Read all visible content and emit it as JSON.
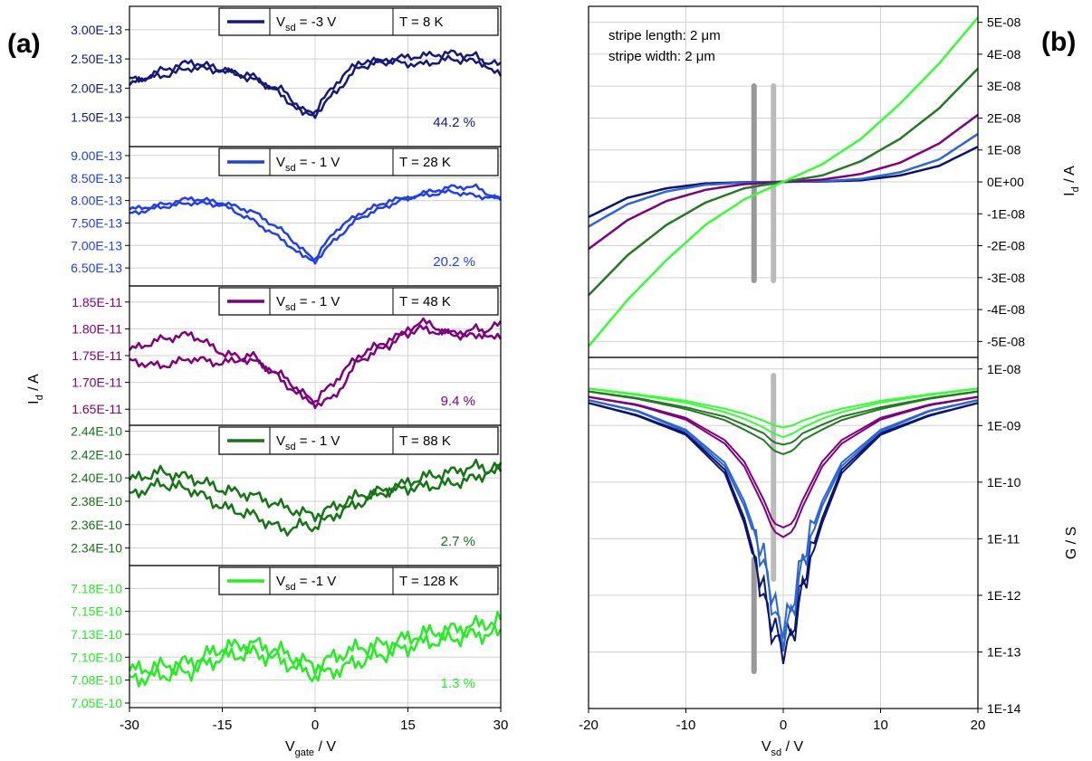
{
  "panel_labels": {
    "a": "(a)",
    "b": "(b)"
  },
  "left_axis": {
    "ylabel_main": "I",
    "ylabel_sub": "d",
    "ylabel_unit": " / A",
    "xlabel_main": "V",
    "xlabel_sub": "gate",
    "xlabel_unit": " / V",
    "xticks": [
      "-30",
      "-15",
      "0",
      "15",
      "30"
    ]
  },
  "right_axis": {
    "xlabel_main": "V",
    "xlabel_sub": "sd",
    "xlabel_unit": " / V",
    "xticks": [
      "-20",
      "-10",
      "0",
      "10",
      "20"
    ],
    "top_ylabel_main": "I",
    "top_ylabel_sub": "d",
    "top_ylabel_unit": " / A",
    "bottom_ylabel": "G / S",
    "annotation_line1": "stripe length: 2 μm",
    "annotation_line2": "stripe width: 2 μm"
  },
  "colors": {
    "k8": "#151a7a",
    "k28": "#1f3ef0",
    "k48": "#800080",
    "k88": "#137513",
    "k128": "#22ee22",
    "b_navy": "#0b1470",
    "b_blue": "#2a66d6",
    "b_purple": "#800080",
    "b_green": "#227a22",
    "b_lime": "#33ff33",
    "grey_bar": "#999999",
    "lightgrey_bar": "#bbbbbb"
  },
  "chart_data": [
    {
      "type": "line",
      "panel": "a-1",
      "legend_prefix": "V",
      "legend_sub": "sd",
      "legend_value": " = -3 V",
      "legend_temp": "T = 8 K",
      "annotation": "44.2 %",
      "yticks": [
        "3.00E-13",
        "2.50E-13",
        "2.00E-13",
        "1.50E-13"
      ],
      "ytick_values": [
        3e-13,
        2.5e-13,
        2e-13,
        1.5e-13
      ],
      "ylim": [
        1e-13,
        3.4e-13
      ],
      "xlim": [
        -30,
        30
      ],
      "x": [
        -30,
        -25,
        -20,
        -15,
        -10,
        -5,
        -2,
        0,
        3,
        7,
        12,
        17,
        22,
        26,
        30
      ],
      "series": [
        {
          "values": [
            2.05e-13,
            2.3e-13,
            2.45e-13,
            2.32e-13,
            2.15e-13,
            1.95e-13,
            1.62e-13,
            1.55e-13,
            1.9e-13,
            2.35e-13,
            2.5e-13,
            2.55e-13,
            2.6e-13,
            2.55e-13,
            2.2e-13
          ]
        },
        {
          "values": [
            2.15e-13,
            2.2e-13,
            2.35e-13,
            2.3e-13,
            2.2e-13,
            1.85e-13,
            1.55e-13,
            1.6e-13,
            2.05e-13,
            2.45e-13,
            2.45e-13,
            2.4e-13,
            2.5e-13,
            2.45e-13,
            2.4e-13
          ]
        }
      ]
    },
    {
      "type": "line",
      "panel": "a-2",
      "legend_prefix": "V",
      "legend_sub": "sd",
      "legend_value": " = - 1 V",
      "legend_temp": "T = 28 K",
      "annotation": "20.2 %",
      "yticks": [
        "9.00E-13",
        "8.50E-13",
        "8.00E-13",
        "7.50E-13",
        "7.00E-13",
        "6.50E-13"
      ],
      "ytick_values": [
        9e-13,
        8.5e-13,
        8e-13,
        7.5e-13,
        7e-13,
        6.5e-13
      ],
      "ylim": [
        6.1e-13,
        9.2e-13
      ],
      "xlim": [
        -30,
        30
      ],
      "x": [
        -30,
        -25,
        -20,
        -15,
        -10,
        -5,
        -2,
        0,
        3,
        7,
        12,
        17,
        22,
        26,
        30
      ],
      "series": [
        {
          "values": [
            7.8e-13,
            7.9e-13,
            8.05e-13,
            7.95e-13,
            7.75e-13,
            7.3e-13,
            6.9e-13,
            6.65e-13,
            7.1e-13,
            7.6e-13,
            7.9e-13,
            8.15e-13,
            8.3e-13,
            8.3e-13,
            8e-13
          ]
        },
        {
          "values": [
            7.7e-13,
            7.85e-13,
            7.95e-13,
            7.9e-13,
            7.55e-13,
            7.1e-13,
            6.75e-13,
            6.7e-13,
            7.3e-13,
            7.7e-13,
            8e-13,
            8.1e-13,
            8.2e-13,
            8.1e-13,
            8.05e-13
          ]
        }
      ]
    },
    {
      "type": "line",
      "panel": "a-3",
      "legend_prefix": "V",
      "legend_sub": "sd",
      "legend_value": " = - 1 V",
      "legend_temp": "T = 48 K",
      "annotation": "9.4 %",
      "yticks": [
        "1.85E-11",
        "1.80E-11",
        "1.75E-11",
        "1.70E-11",
        "1.65E-11"
      ],
      "ytick_values": [
        1.85e-11,
        1.8e-11,
        1.75e-11,
        1.7e-11,
        1.65e-11
      ],
      "ylim": [
        1.62e-11,
        1.88e-11
      ],
      "xlim": [
        -30,
        30
      ],
      "x": [
        -30,
        -25,
        -20,
        -15,
        -10,
        -5,
        -2,
        0,
        3,
        7,
        12,
        17,
        22,
        26,
        30
      ],
      "series": [
        {
          "values": [
            1.76e-11,
            1.78e-11,
            1.79e-11,
            1.755e-11,
            1.74e-11,
            1.71e-11,
            1.68e-11,
            1.66e-11,
            1.67e-11,
            1.74e-11,
            1.77e-11,
            1.815e-11,
            1.79e-11,
            1.8e-11,
            1.78e-11
          ]
        },
        {
          "values": [
            1.74e-11,
            1.73e-11,
            1.745e-11,
            1.735e-11,
            1.75e-11,
            1.7e-11,
            1.67e-11,
            1.665e-11,
            1.7e-11,
            1.75e-11,
            1.78e-11,
            1.8e-11,
            1.79e-11,
            1.785e-11,
            1.81e-11
          ]
        }
      ]
    },
    {
      "type": "line",
      "panel": "a-4",
      "legend_prefix": "V",
      "legend_sub": "sd",
      "legend_value": " = - 1 V",
      "legend_temp": "T = 88 K",
      "annotation": "2.7 %",
      "yticks": [
        "2.44E-10",
        "2.42E-10",
        "2.40E-10",
        "2.38E-10",
        "2.36E-10",
        "2.34E-10"
      ],
      "ytick_values": [
        2.44e-10,
        2.42e-10,
        2.4e-10,
        2.38e-10,
        2.36e-10,
        2.34e-10
      ],
      "ylim": [
        2.325e-10,
        2.445e-10
      ],
      "xlim": [
        -30,
        30
      ],
      "x": [
        -30,
        -25,
        -20,
        -15,
        -10,
        -5,
        -2,
        0,
        3,
        7,
        12,
        17,
        22,
        26,
        30
      ],
      "series": [
        {
          "values": [
            2.398e-10,
            2.405e-10,
            2.4e-10,
            2.39e-10,
            2.385e-10,
            2.375e-10,
            2.37e-10,
            2.368e-10,
            2.375e-10,
            2.385e-10,
            2.39e-10,
            2.4e-10,
            2.405e-10,
            2.41e-10,
            2.405e-10
          ]
        },
        {
          "values": [
            2.385e-10,
            2.395e-10,
            2.39e-10,
            2.375e-10,
            2.368e-10,
            2.355e-10,
            2.36e-10,
            2.358e-10,
            2.368e-10,
            2.378e-10,
            2.39e-10,
            2.392e-10,
            2.395e-10,
            2.4e-10,
            2.41e-10
          ]
        }
      ]
    },
    {
      "type": "line",
      "panel": "a-5",
      "legend_prefix": "V",
      "legend_sub": "sd",
      "legend_value": " = -1 V",
      "legend_temp": "T = 128 K",
      "annotation": "1.3 %",
      "yticks": [
        "7.18E-10",
        "7.15E-10",
        "7.13E-10",
        "7.10E-10",
        "7.08E-10",
        "7.05E-10"
      ],
      "ytick_values": [
        7.18e-10,
        7.155e-10,
        7.13e-10,
        7.105e-10,
        7.08e-10,
        7.055e-10
      ],
      "ylim": [
        7.05e-10,
        7.205e-10
      ],
      "xlim": [
        -30,
        30
      ],
      "x": [
        -30,
        -25,
        -20,
        -15,
        -10,
        -5,
        -2,
        0,
        3,
        7,
        12,
        17,
        22,
        26,
        30
      ],
      "series": [
        {
          "values": [
            7.09e-10,
            7.095e-10,
            7.1e-10,
            7.115e-10,
            7.12e-10,
            7.11e-10,
            7.1e-10,
            7.095e-10,
            7.105e-10,
            7.115e-10,
            7.12e-10,
            7.13e-10,
            7.135e-10,
            7.14e-10,
            7.145e-10
          ]
        },
        {
          "values": [
            7.08e-10,
            7.085e-10,
            7.09e-10,
            7.105e-10,
            7.11e-10,
            7.1e-10,
            7.09e-10,
            7.085e-10,
            7.09e-10,
            7.1e-10,
            7.11e-10,
            7.12e-10,
            7.125e-10,
            7.13e-10,
            7.13e-10
          ]
        }
      ]
    },
    {
      "type": "line",
      "panel": "b-top",
      "xlim": [
        -20,
        20
      ],
      "ylim": [
        -5.5e-08,
        5.5e-08
      ],
      "yticks": [
        "5E-08",
        "4E-08",
        "3E-08",
        "2E-08",
        "1E-08",
        "0E+00",
        "-1E-08",
        "-2E-08",
        "-3E-08",
        "-4E-08",
        "-5E-08"
      ],
      "ytick_values": [
        5e-08,
        4e-08,
        3e-08,
        2e-08,
        1e-08,
        0,
        -1e-08,
        -2e-08,
        -3e-08,
        -4e-08,
        -5e-08
      ],
      "x": [
        -20,
        -16,
        -12,
        -8,
        -4,
        0,
        4,
        8,
        12,
        16,
        20
      ],
      "series": [
        {
          "values": [
            -1.1e-08,
            -5e-09,
            -2e-09,
            -5e-10,
            -1e-10,
            0,
            1e-10,
            5e-10,
            2e-09,
            5e-09,
            1.1e-08
          ]
        },
        {
          "values": [
            -1.4e-08,
            -7e-09,
            -3e-09,
            -9e-10,
            -2e-10,
            0,
            2e-10,
            9e-10,
            3e-09,
            7e-09,
            1.5e-08
          ]
        },
        {
          "values": [
            -2.1e-08,
            -1.2e-08,
            -6e-09,
            -2.5e-09,
            -7e-10,
            0,
            7e-10,
            2.5e-09,
            6e-09,
            1.2e-08,
            2.1e-08
          ]
        },
        {
          "values": [
            -3.55e-08,
            -2.3e-08,
            -1.35e-08,
            -6.5e-09,
            -2e-09,
            0,
            2e-09,
            6.5e-09,
            1.35e-08,
            2.3e-08,
            3.55e-08
          ]
        },
        {
          "values": [
            -5.15e-08,
            -3.7e-08,
            -2.45e-08,
            -1.35e-08,
            -5.5e-09,
            0,
            5.5e-09,
            1.35e-08,
            2.45e-08,
            3.7e-08,
            5.15e-08
          ]
        }
      ]
    },
    {
      "type": "line",
      "panel": "b-bottom",
      "yscale": "log",
      "xlim": [
        -20,
        20
      ],
      "ylim": [
        1e-14,
        1.6e-08
      ],
      "yticks": [
        "1E-08",
        "1E-09",
        "1E-10",
        "1E-11",
        "1E-12",
        "1E-13",
        "1E-14"
      ],
      "ytick_values": [
        1e-08,
        1e-09,
        1e-10,
        1e-11,
        1e-12,
        1e-13,
        1e-14
      ],
      "x": [
        -20,
        -15,
        -10,
        -6,
        -4,
        -2,
        -1,
        0,
        1,
        2,
        4,
        6,
        10,
        15,
        20
      ],
      "series": [
        {
          "values": [
            2.5e-09,
            1.5e-09,
            7e-10,
            1.5e-10,
            2e-11,
            1e-12,
            2e-13,
            1.2e-13,
            2e-13,
            1.5e-12,
            2e-11,
            1.5e-10,
            7e-10,
            1.5e-09,
            2.5e-09
          ]
        },
        {
          "values": [
            2.8e-09,
            1.8e-09,
            8e-10,
            2e-10,
            4e-11,
            4e-12,
            6e-13,
            2e-13,
            6e-13,
            4e-12,
            4e-11,
            2e-10,
            8e-10,
            1.8e-09,
            2.8e-09
          ]
        },
        {
          "values": [
            3.2e-09,
            2.3e-09,
            1.3e-09,
            5e-10,
            2e-10,
            4e-11,
            1.5e-11,
            1.2e-11,
            1.5e-11,
            4e-11,
            2e-10,
            5e-10,
            1.3e-09,
            2.3e-09,
            3.2e-09
          ]
        },
        {
          "values": [
            4e-09,
            3e-09,
            2e-09,
            1.3e-09,
            9e-10,
            6e-10,
            4e-10,
            3.5e-10,
            4e-10,
            6e-10,
            9e-10,
            1.3e-09,
            2e-09,
            3e-09,
            4e-09
          ]
        },
        {
          "values": [
            4.5e-09,
            3.5e-09,
            2.6e-09,
            1.8e-09,
            1.4e-09,
            1e-09,
            8e-10,
            7e-10,
            8e-10,
            1e-09,
            1.4e-09,
            1.8e-09,
            2.6e-09,
            3.5e-09,
            4.5e-09
          ]
        }
      ]
    }
  ]
}
